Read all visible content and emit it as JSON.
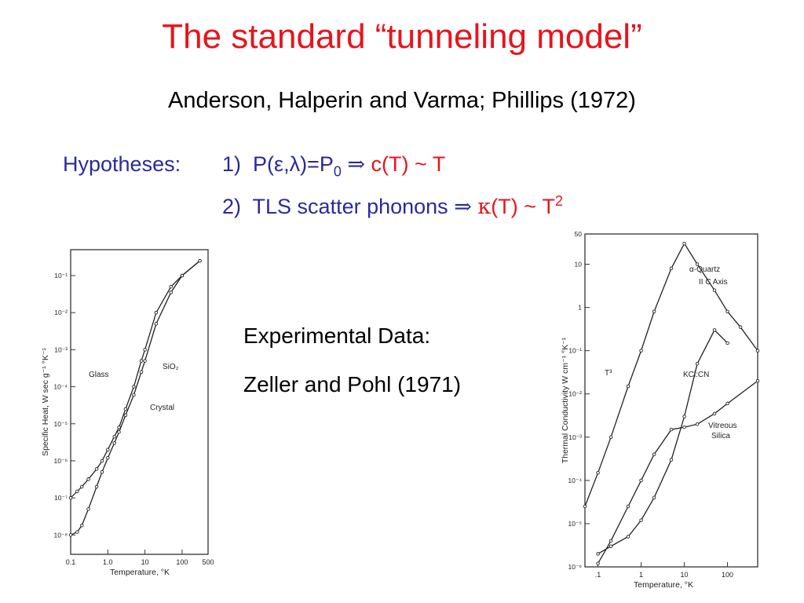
{
  "title": "The standard “tunneling model”",
  "subtitle": "Anderson, Halperin and Varma; Phillips (1972)",
  "hypotheses": {
    "label": "Hypotheses:",
    "h1_num": "1)",
    "h1_lhs": "P(ε,λ)=P",
    "h1_sub": "0",
    "implies": "⇒",
    "h1_rhs": "c(T) ~ T",
    "h2_num": "2)",
    "h2_text": "TLS scatter phonons",
    "h2_rhs_kappa": "κ",
    "h2_rhs": "(T) ~ T",
    "h2_sup": "2"
  },
  "experimental": {
    "label": "Experimental Data:",
    "citation": "Zeller and Pohl (1971)"
  },
  "chart_data": [
    {
      "type": "line",
      "xlabel": "Temperature, °K",
      "ylabel": "Specific Heat, W sec g⁻¹ °K⁻¹",
      "xscale": "log",
      "yscale": "log",
      "xlim": [
        0.1,
        500
      ],
      "ylim": [
        3e-09,
        0.5
      ],
      "x_tick_labels": [
        "0.1",
        "1.0",
        "10",
        "100",
        "500"
      ],
      "y_tick_labels": [
        "10⁻⁸",
        "10⁻⁷",
        "10⁻⁶",
        "10⁻⁵",
        "10⁻⁴",
        "10⁻³",
        "10⁻²",
        "10⁻¹"
      ],
      "annotations": [
        "Glass",
        "Crystal",
        "SiO₂"
      ],
      "series": [
        {
          "name": "Glass",
          "x": [
            0.1,
            0.15,
            0.2,
            0.3,
            0.5,
            0.7,
            1.0,
            1.5,
            2,
            3,
            5,
            8,
            10,
            20,
            50,
            100,
            300
          ],
          "y": [
            1e-07,
            1.5e-07,
            2e-07,
            3.2e-07,
            6e-07,
            1e-06,
            2e-06,
            4.5e-06,
            8e-06,
            2.5e-05,
            0.0001,
            0.0005,
            0.001,
            0.01,
            0.05,
            0.1,
            0.25
          ]
        },
        {
          "name": "Crystal",
          "x": [
            0.1,
            0.15,
            0.2,
            0.3,
            0.5,
            0.7,
            1.0,
            1.5,
            2,
            3,
            5,
            8,
            10,
            20,
            50,
            100,
            300
          ],
          "y": [
            1e-08,
            1.2e-08,
            1.8e-08,
            5e-08,
            2e-07,
            5e-07,
            1.2e-06,
            3e-06,
            6e-06,
            1.7e-05,
            6e-05,
            0.00025,
            0.0005,
            0.005,
            0.035,
            0.1,
            0.25
          ]
        }
      ]
    },
    {
      "type": "line",
      "xlabel": "Temperature, °K",
      "ylabel": "Thermal Conductivity W cm⁻¹ °K⁻¹",
      "xscale": "log",
      "yscale": "log",
      "xlim": [
        0.05,
        500
      ],
      "ylim": [
        1e-06,
        50
      ],
      "x_tick_labels": [
        ".1",
        "1",
        "10",
        "100"
      ],
      "y_tick_labels": [
        "10⁻⁶",
        "10⁻⁵",
        "10⁻⁴",
        "10⁻³",
        "10⁻²",
        "10⁻¹",
        "1",
        "10",
        "50"
      ],
      "annotations": [
        "α-Quartz",
        "II C Axis",
        "KCl:CN",
        "Vitreous",
        "Silica",
        "T³"
      ],
      "series": [
        {
          "name": "α-Quartz",
          "x": [
            0.05,
            0.1,
            0.2,
            0.5,
            1,
            2,
            5,
            10,
            20,
            50,
            100,
            200,
            500
          ],
          "y": [
            2.5e-05,
            0.00015,
            0.001,
            0.015,
            0.1,
            0.8,
            8,
            30,
            10,
            2.5,
            0.8,
            0.35,
            0.1
          ]
        },
        {
          "name": "KCl:CN",
          "x": [
            0.1,
            0.2,
            0.5,
            1,
            2,
            5,
            10,
            20,
            50,
            100
          ],
          "y": [
            2e-06,
            3e-06,
            5e-06,
            1.2e-05,
            4e-05,
            0.0003,
            0.003,
            0.05,
            0.3,
            0.15
          ]
        },
        {
          "name": "Vitreous Silica",
          "x": [
            0.1,
            0.2,
            0.5,
            1,
            2,
            5,
            10,
            20,
            50,
            100,
            500
          ],
          "y": [
            1.2e-06,
            4e-06,
            2.5e-05,
            0.0001,
            0.0004,
            0.0015,
            0.0017,
            0.002,
            0.0035,
            0.006,
            0.02
          ]
        }
      ]
    }
  ]
}
